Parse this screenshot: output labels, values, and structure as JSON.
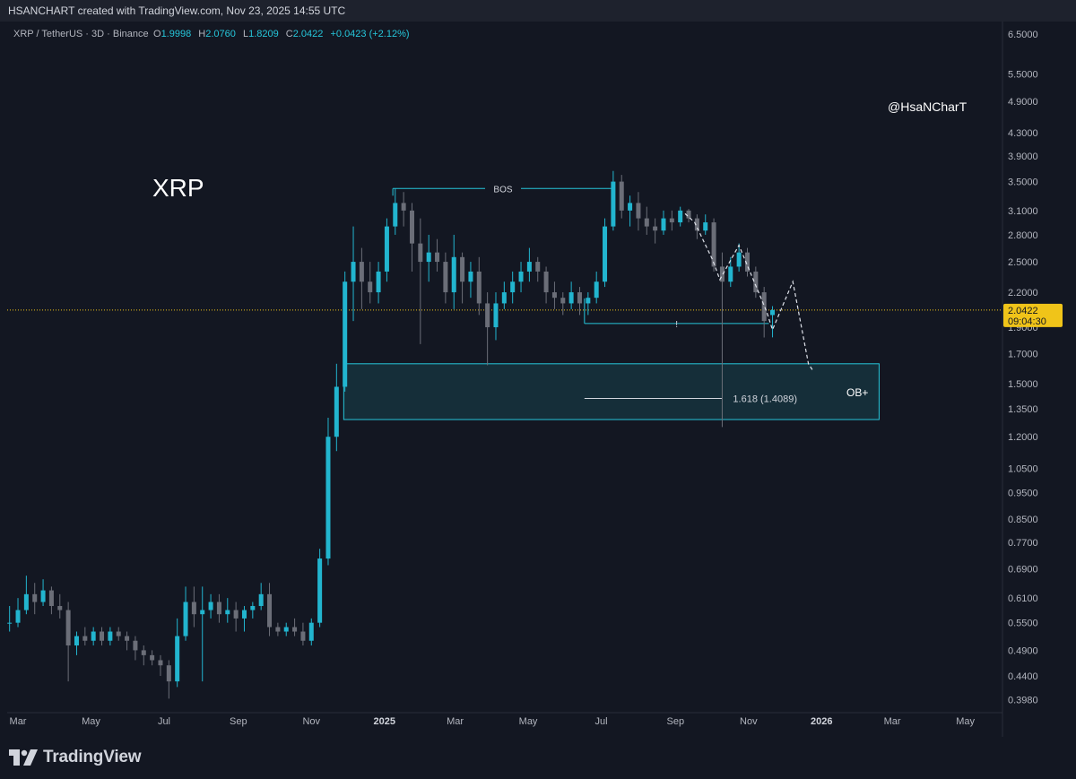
{
  "header": {
    "caption": "HSANCHART created with TradingView.com, Nov 23, 2025 14:55 UTC"
  },
  "legend": {
    "symbol": "XRP / TetherUS · 3D · Binance",
    "o_label": "O",
    "o": "1.9998",
    "h_label": "H",
    "h": "2.0760",
    "l_label": "L",
    "l": "1.8209",
    "c_label": "C",
    "c": "2.0422",
    "change": "+0.0423 (+2.12%)"
  },
  "chart_data": {
    "type": "candlestick",
    "title": "XRP",
    "watermark": "@HsaNCharT",
    "scale": "log",
    "ylim": [
      0.38,
      6.8
    ],
    "y_ticks": [
      "6.5000",
      "5.5000",
      "4.9000",
      "4.3000",
      "3.9000",
      "3.5000",
      "3.1000",
      "2.8000",
      "2.5000",
      "2.2000",
      "1.9000",
      "1.7000",
      "1.5000",
      "1.3500",
      "1.2000",
      "1.0500",
      "0.9500",
      "0.8500",
      "0.7700",
      "0.6900",
      "0.6100",
      "0.5500",
      "0.4900",
      "0.4400",
      "0.3980"
    ],
    "x_ticks": [
      "Mar",
      "May",
      "Jul",
      "Sep",
      "Nov",
      "2025",
      "Mar",
      "May",
      "Jul",
      "Sep",
      "Nov",
      "2026",
      "Mar",
      "May"
    ],
    "x_tick_dates": [
      "2024-03-01",
      "2024-05-01",
      "2024-07-01",
      "2024-09-01",
      "2024-11-01",
      "2025-01-01",
      "2025-03-01",
      "2025-05-01",
      "2025-07-01",
      "2025-09-01",
      "2025-11-01",
      "2026-01-01",
      "2026-03-01",
      "2026-05-01"
    ],
    "x_range": [
      "2024-02-21",
      "2026-06-01"
    ],
    "last_price": "2.0422",
    "countdown": "09:04:30",
    "colors": {
      "up": "#22b5cf",
      "down": "#6b6e78",
      "accent": "#26c6da",
      "price_line": "#f0c419",
      "background": "#131722"
    },
    "candles": [
      [
        "2024-02-23",
        0.55,
        0.59,
        0.53,
        0.55
      ],
      [
        "2024-03-01",
        0.55,
        0.61,
        0.54,
        0.58
      ],
      [
        "2024-03-08",
        0.58,
        0.67,
        0.57,
        0.62
      ],
      [
        "2024-03-15",
        0.62,
        0.65,
        0.57,
        0.6
      ],
      [
        "2024-03-22",
        0.6,
        0.66,
        0.59,
        0.63
      ],
      [
        "2024-03-29",
        0.63,
        0.64,
        0.57,
        0.59
      ],
      [
        "2024-04-05",
        0.59,
        0.62,
        0.56,
        0.58
      ],
      [
        "2024-04-12",
        0.58,
        0.6,
        0.43,
        0.5
      ],
      [
        "2024-04-19",
        0.5,
        0.53,
        0.48,
        0.52
      ],
      [
        "2024-04-26",
        0.52,
        0.54,
        0.5,
        0.51
      ],
      [
        "2024-05-03",
        0.51,
        0.54,
        0.5,
        0.53
      ],
      [
        "2024-05-10",
        0.53,
        0.54,
        0.5,
        0.51
      ],
      [
        "2024-05-17",
        0.51,
        0.54,
        0.5,
        0.53
      ],
      [
        "2024-05-24",
        0.53,
        0.54,
        0.51,
        0.52
      ],
      [
        "2024-05-31",
        0.52,
        0.53,
        0.49,
        0.51
      ],
      [
        "2024-06-07",
        0.51,
        0.52,
        0.47,
        0.49
      ],
      [
        "2024-06-14",
        0.49,
        0.5,
        0.46,
        0.48
      ],
      [
        "2024-06-21",
        0.48,
        0.49,
        0.46,
        0.47
      ],
      [
        "2024-06-28",
        0.47,
        0.48,
        0.44,
        0.46
      ],
      [
        "2024-07-05",
        0.46,
        0.47,
        0.4,
        0.43
      ],
      [
        "2024-07-12",
        0.43,
        0.56,
        0.42,
        0.52
      ],
      [
        "2024-07-19",
        0.52,
        0.64,
        0.51,
        0.6
      ],
      [
        "2024-07-26",
        0.6,
        0.64,
        0.54,
        0.57
      ],
      [
        "2024-08-02",
        0.57,
        0.64,
        0.43,
        0.58
      ],
      [
        "2024-08-09",
        0.58,
        0.62,
        0.56,
        0.6
      ],
      [
        "2024-08-16",
        0.6,
        0.62,
        0.55,
        0.57
      ],
      [
        "2024-08-23",
        0.57,
        0.61,
        0.55,
        0.58
      ],
      [
        "2024-08-30",
        0.58,
        0.6,
        0.53,
        0.56
      ],
      [
        "2024-09-06",
        0.56,
        0.59,
        0.53,
        0.58
      ],
      [
        "2024-09-13",
        0.58,
        0.6,
        0.56,
        0.59
      ],
      [
        "2024-09-20",
        0.59,
        0.65,
        0.58,
        0.62
      ],
      [
        "2024-09-27",
        0.62,
        0.65,
        0.52,
        0.54
      ],
      [
        "2024-10-04",
        0.54,
        0.55,
        0.52,
        0.53
      ],
      [
        "2024-10-11",
        0.53,
        0.55,
        0.52,
        0.54
      ],
      [
        "2024-10-18",
        0.54,
        0.56,
        0.52,
        0.53
      ],
      [
        "2024-10-25",
        0.53,
        0.55,
        0.5,
        0.51
      ],
      [
        "2024-11-01",
        0.51,
        0.56,
        0.5,
        0.55
      ],
      [
        "2024-11-08",
        0.55,
        0.75,
        0.54,
        0.72
      ],
      [
        "2024-11-15",
        0.72,
        1.3,
        0.7,
        1.2
      ],
      [
        "2024-11-22",
        1.2,
        1.63,
        1.13,
        1.48
      ],
      [
        "2024-11-29",
        1.48,
        2.4,
        1.45,
        2.3
      ],
      [
        "2024-12-06",
        2.3,
        2.9,
        1.95,
        2.5
      ],
      [
        "2024-12-13",
        2.5,
        2.65,
        2.05,
        2.3
      ],
      [
        "2024-12-20",
        2.3,
        2.5,
        2.1,
        2.2
      ],
      [
        "2024-12-27",
        2.2,
        2.5,
        2.1,
        2.4
      ],
      [
        "2025-01-03",
        2.4,
        3.0,
        2.3,
        2.9
      ],
      [
        "2025-01-10",
        2.9,
        3.4,
        2.8,
        3.2
      ],
      [
        "2025-01-17",
        3.2,
        3.35,
        2.9,
        3.1
      ],
      [
        "2025-01-24",
        3.1,
        3.2,
        2.4,
        2.7
      ],
      [
        "2025-01-31",
        2.7,
        3.0,
        1.77,
        2.5
      ],
      [
        "2025-02-07",
        2.5,
        2.8,
        2.3,
        2.6
      ],
      [
        "2025-02-14",
        2.6,
        2.75,
        2.4,
        2.5
      ],
      [
        "2025-02-21",
        2.5,
        2.6,
        2.1,
        2.2
      ],
      [
        "2025-02-28",
        2.2,
        2.8,
        2.05,
        2.55
      ],
      [
        "2025-03-07",
        2.55,
        2.6,
        2.1,
        2.3
      ],
      [
        "2025-03-14",
        2.3,
        2.5,
        2.15,
        2.4
      ],
      [
        "2025-03-21",
        2.4,
        2.55,
        2.0,
        2.1
      ],
      [
        "2025-03-28",
        2.1,
        2.2,
        1.62,
        1.9
      ],
      [
        "2025-04-04",
        1.9,
        2.2,
        1.8,
        2.1
      ],
      [
        "2025-04-11",
        2.1,
        2.3,
        2.05,
        2.2
      ],
      [
        "2025-04-18",
        2.2,
        2.4,
        2.1,
        2.3
      ],
      [
        "2025-04-25",
        2.3,
        2.5,
        2.2,
        2.4
      ],
      [
        "2025-05-02",
        2.4,
        2.65,
        2.3,
        2.5
      ],
      [
        "2025-05-09",
        2.5,
        2.55,
        2.3,
        2.4
      ],
      [
        "2025-05-16",
        2.4,
        2.45,
        2.1,
        2.2
      ],
      [
        "2025-05-23",
        2.2,
        2.3,
        2.05,
        2.15
      ],
      [
        "2025-05-30",
        2.15,
        2.2,
        2.0,
        2.1
      ],
      [
        "2025-06-06",
        2.1,
        2.3,
        2.05,
        2.2
      ],
      [
        "2025-06-13",
        2.2,
        2.25,
        2.0,
        2.1
      ],
      [
        "2025-06-20",
        2.1,
        2.2,
        2.0,
        2.15
      ],
      [
        "2025-06-27",
        2.15,
        2.4,
        2.1,
        2.3
      ],
      [
        "2025-07-04",
        2.3,
        3.0,
        2.25,
        2.9
      ],
      [
        "2025-07-11",
        2.9,
        3.66,
        2.85,
        3.5
      ],
      [
        "2025-07-18",
        3.5,
        3.6,
        3.0,
        3.1
      ],
      [
        "2025-07-25",
        3.1,
        3.3,
        2.9,
        3.2
      ],
      [
        "2025-08-01",
        3.2,
        3.35,
        2.85,
        3.0
      ],
      [
        "2025-08-08",
        3.0,
        3.15,
        2.8,
        2.9
      ],
      [
        "2025-08-15",
        2.9,
        3.0,
        2.7,
        2.85
      ],
      [
        "2025-08-22",
        2.85,
        3.1,
        2.8,
        3.0
      ],
      [
        "2025-08-29",
        3.0,
        3.1,
        2.85,
        2.95
      ],
      [
        "2025-09-05",
        2.95,
        3.15,
        2.9,
        3.1
      ],
      [
        "2025-09-12",
        3.1,
        3.12,
        2.95,
        3.0
      ],
      [
        "2025-09-19",
        3.0,
        3.05,
        2.75,
        2.85
      ],
      [
        "2025-09-26",
        2.85,
        3.05,
        2.8,
        2.95
      ],
      [
        "2025-10-03",
        2.95,
        3.0,
        2.4,
        2.45
      ],
      [
        "2025-10-10",
        2.45,
        2.6,
        1.25,
        2.3
      ],
      [
        "2025-10-17",
        2.3,
        2.55,
        2.25,
        2.45
      ],
      [
        "2025-10-24",
        2.45,
        2.7,
        2.4,
        2.6
      ],
      [
        "2025-10-31",
        2.6,
        2.65,
        2.35,
        2.4
      ],
      [
        "2025-11-07",
        2.4,
        2.45,
        2.15,
        2.2
      ],
      [
        "2025-11-14",
        2.2,
        2.25,
        1.82,
        1.95
      ],
      [
        "2025-11-21",
        1.9998,
        2.076,
        1.8209,
        2.0422
      ]
    ],
    "annotations": {
      "bos_label": "BOS",
      "bos_level": 3.4,
      "bos_range": [
        "2025-01-08",
        "2025-07-11"
      ],
      "minor_label": "!",
      "minor_level": 1.93,
      "minor_range": [
        "2025-06-17",
        "2025-11-18"
      ],
      "fib_label": "1.618 (1.4089)",
      "fib_level": 1.4089,
      "fib_range": [
        "2025-06-17",
        "2025-10-10"
      ],
      "ob_label": "OB+",
      "ob_top": 1.63,
      "ob_bottom": 1.29,
      "ob_range": [
        "2024-11-28",
        "2026-02-18"
      ],
      "projection": [
        [
          "2025-09-09",
          3.06
        ],
        [
          "2025-09-17",
          2.95
        ],
        [
          "2025-10-02",
          2.52
        ],
        [
          "2025-10-08",
          2.32
        ],
        [
          "2025-10-24",
          2.68
        ],
        [
          "2025-11-16",
          2.03
        ],
        [
          "2025-11-21",
          1.88
        ],
        [
          "2025-12-08",
          2.3
        ],
        [
          "2025-12-21",
          1.63
        ],
        [
          "2025-12-25",
          1.58
        ]
      ]
    }
  },
  "branding": {
    "name": "TradingView"
  }
}
